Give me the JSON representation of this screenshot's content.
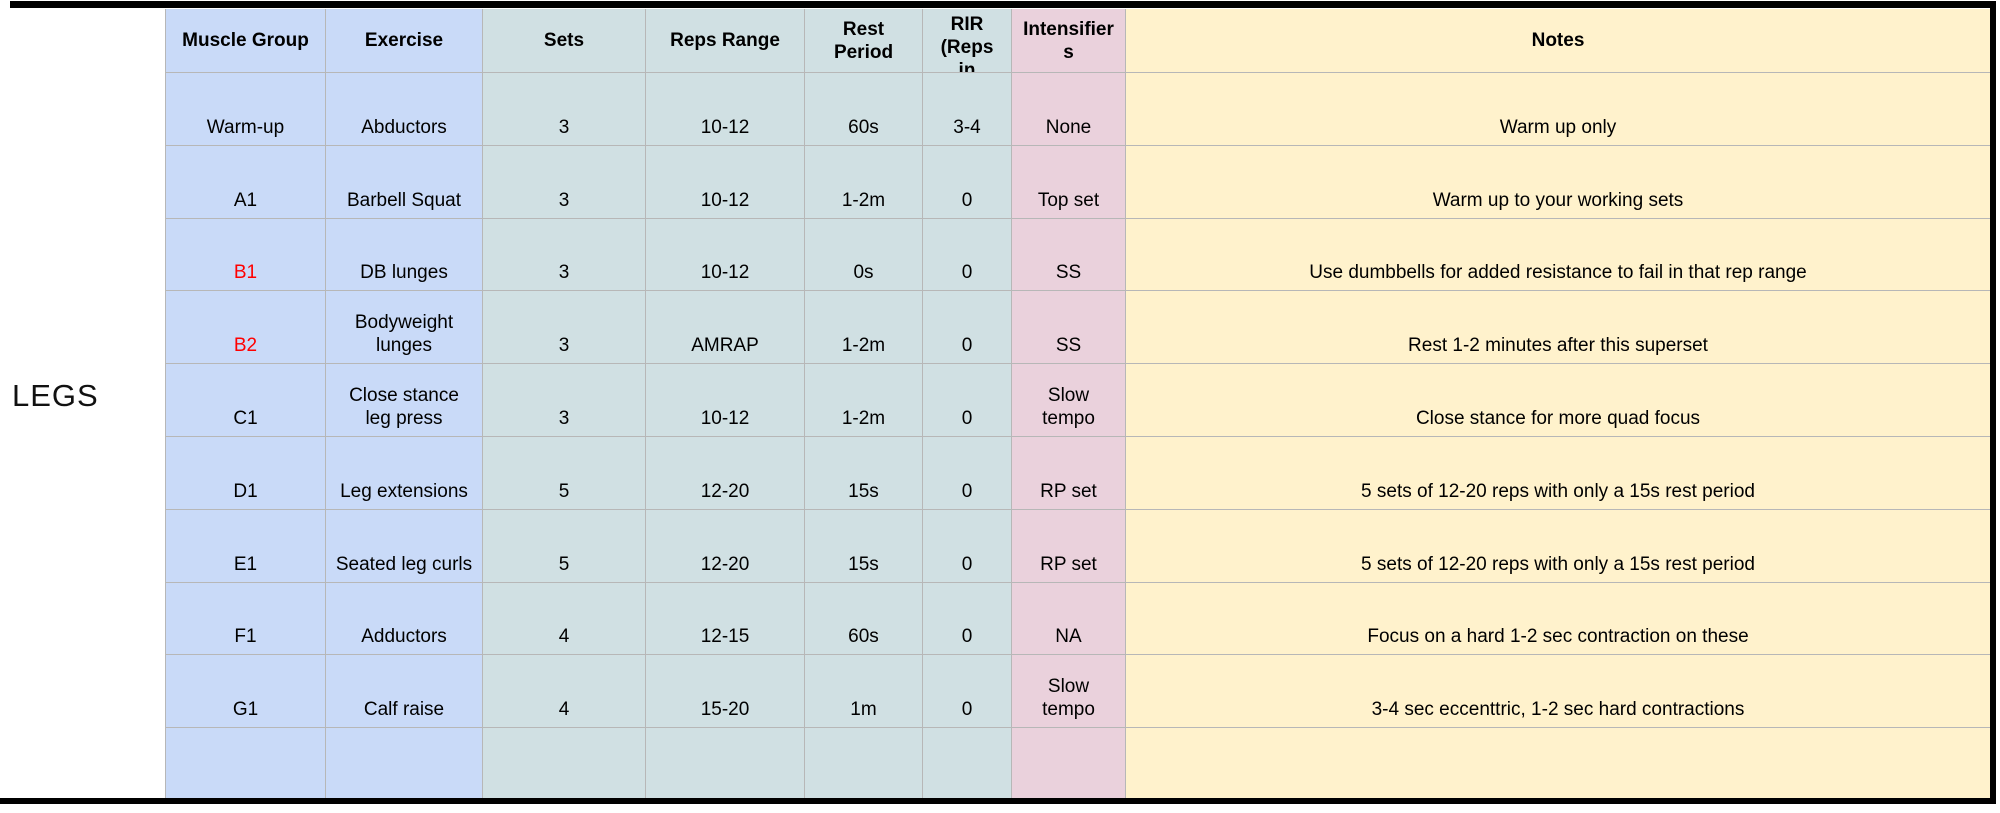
{
  "sheet": {
    "row_label": "LEGS",
    "columns": [
      {
        "id": "muscle_group",
        "label": "Muscle Group"
      },
      {
        "id": "exercise",
        "label": "Exercise"
      },
      {
        "id": "sets",
        "label": "Sets"
      },
      {
        "id": "reps_range",
        "label": "Reps Range"
      },
      {
        "id": "rest_period",
        "label": "Rest\nPeriod"
      },
      {
        "id": "rir",
        "label": "RIR\n(Reps\nin"
      },
      {
        "id": "intensifiers",
        "label": "Intensifier\ns"
      },
      {
        "id": "notes",
        "label": "Notes"
      }
    ],
    "rows": [
      {
        "muscle_group": "Warm-up",
        "exercise": "Abductors",
        "sets": "3",
        "reps_range": "10-12",
        "rest_period": "60s",
        "rir": "3-4",
        "intensifiers": "None",
        "notes": "Warm up only"
      },
      {
        "muscle_group": "A1",
        "exercise": "Barbell Squat",
        "sets": "3",
        "reps_range": "10-12",
        "rest_period": "1-2m",
        "rir": "0",
        "intensifiers": "Top set",
        "notes": "Warm up to your working sets"
      },
      {
        "muscle_group": "B1",
        "muscle_color": "#ff0000",
        "exercise": "DB lunges",
        "sets": "3",
        "reps_range": "10-12",
        "rest_period": "0s",
        "rir": "0",
        "intensifiers": "SS",
        "notes": "Use dumbbells for added resistance to fail in that rep range"
      },
      {
        "muscle_group": "B2",
        "muscle_color": "#ff0000",
        "exercise": "Bodyweight\nlunges",
        "sets": "3",
        "reps_range": "AMRAP",
        "rest_period": "1-2m",
        "rir": "0",
        "intensifiers": "SS",
        "notes": "Rest 1-2 minutes after this superset"
      },
      {
        "muscle_group": "C1",
        "exercise": "Close stance\nleg press",
        "sets": "3",
        "reps_range": "10-12",
        "rest_period": "1-2m",
        "rir": "0",
        "intensifiers": "Slow\ntempo",
        "notes": "Close stance for more quad focus"
      },
      {
        "muscle_group": "D1",
        "exercise": "Leg extensions",
        "sets": "5",
        "reps_range": "12-20",
        "rest_period": "15s",
        "rir": "0",
        "intensifiers": "RP set",
        "notes": "5 sets of 12-20 reps with only a 15s rest period"
      },
      {
        "muscle_group": "E1",
        "exercise": "Seated leg curls",
        "sets": "5",
        "reps_range": "12-20",
        "rest_period": "15s",
        "rir": "0",
        "intensifiers": "RP set",
        "notes": "5 sets of 12-20 reps with only a 15s rest period"
      },
      {
        "muscle_group": "F1",
        "exercise": "Adductors",
        "sets": "4",
        "reps_range": "12-15",
        "rest_period": "60s",
        "rir": "0",
        "intensifiers": "NA",
        "notes": "Focus on a hard 1-2 sec contraction on these"
      },
      {
        "muscle_group": "G1",
        "exercise": "Calf raise",
        "sets": "4",
        "reps_range": "15-20",
        "rest_period": "1m",
        "rir": "0",
        "intensifiers": "Slow\ntempo",
        "notes": "3-4 sec eccenttric, 1-2 sec hard contractions"
      },
      {
        "muscle_group": "",
        "exercise": "",
        "sets": "",
        "reps_range": "",
        "rest_period": "",
        "rir": "",
        "intensifiers": "",
        "notes": ""
      }
    ],
    "colors": {
      "muscle_exercise_bg": "#c9daf8",
      "metrics_bg": "#d0e0e3",
      "intensifiers_bg": "#ead1dc",
      "notes_bg": "#fff2cc",
      "highlight_text": "#ff0000",
      "gridline": "#b7b7b7",
      "frame_border": "#000000"
    }
  }
}
